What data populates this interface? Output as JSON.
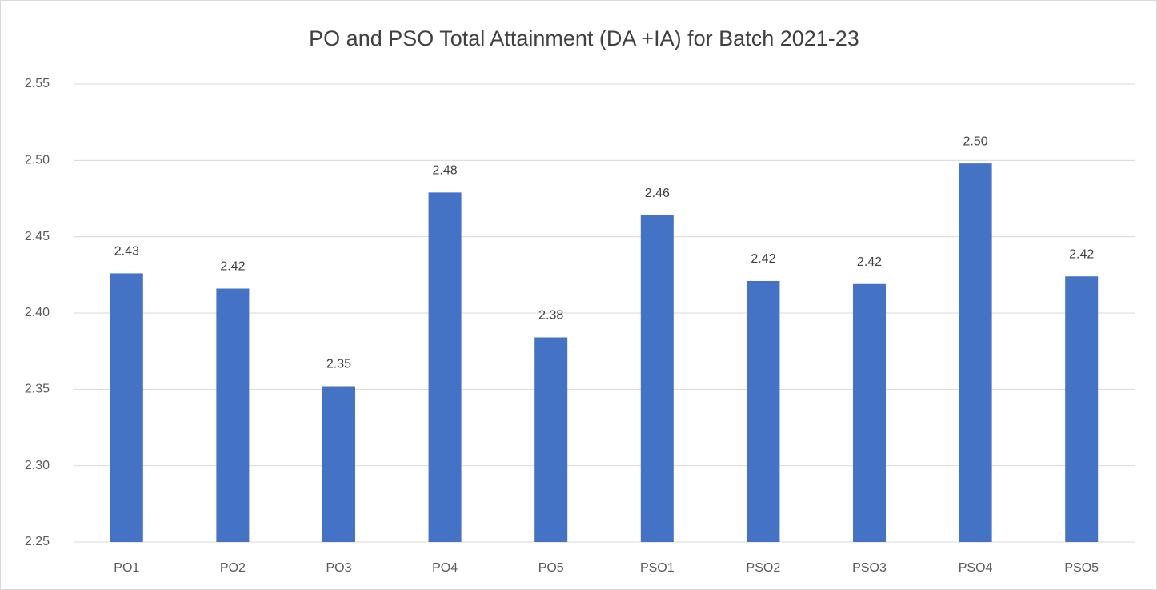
{
  "chart_data": {
    "type": "bar",
    "title": "PO and PSO  Total Attainment (DA +IA) for Batch 2021-23",
    "categories": [
      "PO1",
      "PO2",
      "PO3",
      "PO4",
      "PO5",
      "PSO1",
      "PSO2",
      "PSO3",
      "PSO4",
      "PSO5"
    ],
    "values": [
      2.426,
      2.416,
      2.352,
      2.479,
      2.384,
      2.464,
      2.421,
      2.419,
      2.498,
      2.424
    ],
    "value_labels": [
      "2.43",
      "2.42",
      "2.35",
      "2.48",
      "2.38",
      "2.46",
      "2.42",
      "2.42",
      "2.50",
      "2.42"
    ],
    "color": "#4472c4",
    "ylim": [
      2.25,
      2.55
    ],
    "yticks": [
      2.25,
      {
        "value": 2.3,
        "label": "2.30"
      },
      2.35,
      {
        "value": 2.4,
        "label": "2.40"
      },
      2.45,
      {
        "value": 2.5,
        "label": "2.50"
      },
      2.55
    ],
    "grid": true
  }
}
